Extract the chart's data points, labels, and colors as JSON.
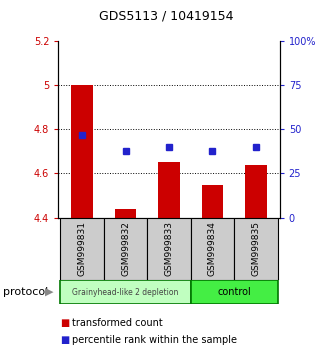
{
  "title": "GDS5113 / 10419154",
  "samples": [
    "GSM999831",
    "GSM999832",
    "GSM999833",
    "GSM999834",
    "GSM999835"
  ],
  "bar_bottoms": [
    4.4,
    4.4,
    4.4,
    4.4,
    4.4
  ],
  "bar_tops": [
    5.0,
    4.44,
    4.65,
    4.55,
    4.64
  ],
  "blue_dots": [
    4.775,
    4.7,
    4.72,
    4.7,
    4.72
  ],
  "ylim_left": [
    4.4,
    5.2
  ],
  "ylim_right": [
    0,
    100
  ],
  "yticks_left": [
    4.4,
    4.6,
    4.8,
    5.0,
    5.2
  ],
  "ytick_labels_left": [
    "4.4",
    "4.6",
    "4.8",
    "5",
    "5.2"
  ],
  "yticks_right": [
    0,
    25,
    50,
    75,
    100
  ],
  "ytick_labels_right": [
    "0",
    "25",
    "50",
    "75",
    "100%"
  ],
  "hlines": [
    5.0,
    4.8,
    4.6
  ],
  "bar_color": "#cc0000",
  "dot_color": "#2222cc",
  "bar_width": 0.5,
  "group1_indices": [
    0,
    1,
    2
  ],
  "group2_indices": [
    3,
    4
  ],
  "group1_label": "Grainyhead-like 2 depletion",
  "group2_label": "control",
  "group1_facecolor": "#c0ffc0",
  "group2_facecolor": "#44ee44",
  "group_edgecolor": "#007700",
  "sample_box_color": "#cccccc",
  "protocol_label": "protocol",
  "legend_red_label": "transformed count",
  "legend_blue_label": "percentile rank within the sample",
  "tick_color_left": "#cc0000",
  "tick_color_right": "#2222cc",
  "title_fontsize": 9,
  "tick_fontsize": 7,
  "sample_fontsize": 6.5,
  "legend_fontsize": 7
}
